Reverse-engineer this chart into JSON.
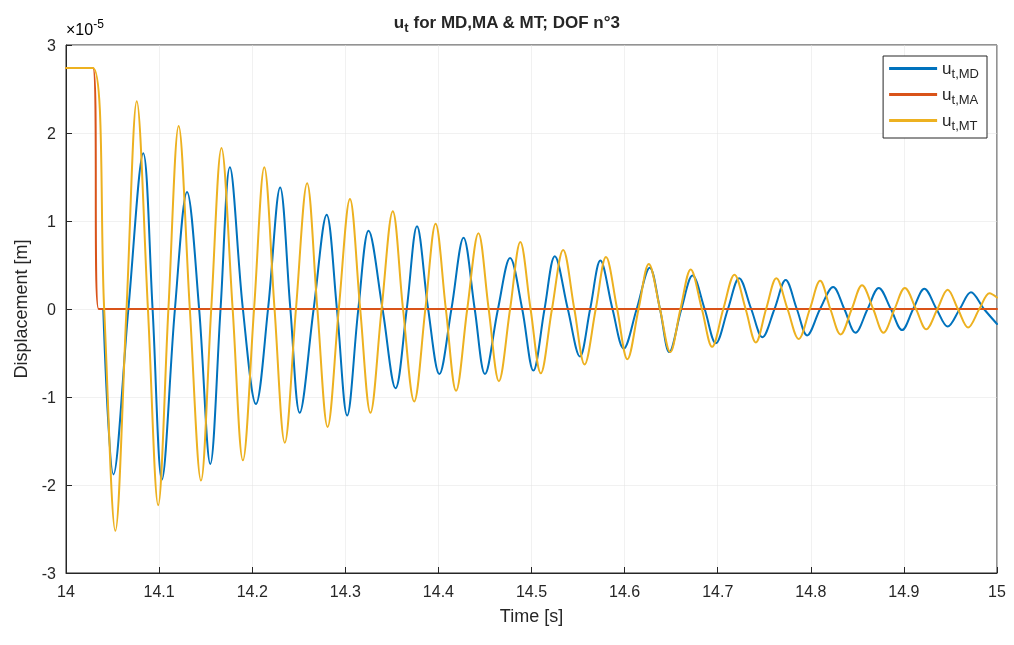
{
  "chart_data": {
    "type": "line",
    "title": "u$_{t}$ for MD,MA & MT; DOF n°3",
    "xlabel": "Time [s]",
    "ylabel": "Displacement [m]",
    "annotations": [
      "×10$^{-5}$"
    ],
    "xlim": [
      14,
      15
    ],
    "xticks": [
      14,
      14.1,
      14.2,
      14.3,
      14.4,
      14.5,
      14.6,
      14.7,
      14.8,
      14.9,
      15
    ],
    "ylim": [
      -3,
      3
    ],
    "yticks": [
      -3,
      -2,
      -1,
      0,
      1,
      2,
      3
    ],
    "grid": true,
    "legend": "top right",
    "marker": "none",
    "line_style": "solid",
    "series": [
      {
        "name": "u$_{t,MD}$",
        "color": "#0072bd",
        "x": [
          14.04,
          14.051,
          14.067,
          14.083,
          14.093,
          14.103,
          14.117,
          14.13,
          14.143,
          14.155,
          14.166,
          14.176,
          14.19,
          14.204,
          14.217,
          14.23,
          14.241,
          14.251,
          14.266,
          14.28,
          14.291,
          14.302,
          14.314,
          14.325,
          14.34,
          14.354,
          14.366,
          14.377,
          14.389,
          14.401,
          14.414,
          14.427,
          14.439,
          14.45,
          14.464,
          14.477,
          14.49,
          14.502,
          14.514,
          14.525,
          14.539,
          14.552,
          14.563,
          14.574,
          14.587,
          14.599,
          14.613,
          14.627,
          14.638,
          14.648,
          14.661,
          14.673,
          14.686,
          14.698,
          14.711,
          14.723,
          14.736,
          14.748,
          14.761,
          14.773,
          14.785,
          14.796,
          14.81,
          14.824,
          14.836,
          14.848,
          14.861,
          14.873,
          14.886,
          14.898,
          14.91,
          14.922,
          14.935,
          14.947,
          14.96,
          14.972,
          14.986,
          15.0
        ],
        "values": [
          0,
          -1.88,
          0,
          1.77,
          0,
          -1.94,
          0,
          1.33,
          0,
          -1.76,
          0,
          1.61,
          0,
          -1.08,
          0,
          1.38,
          0,
          -1.18,
          0,
          1.07,
          0,
          -1.21,
          0,
          0.89,
          0,
          -0.9,
          0,
          0.94,
          0,
          -0.74,
          0,
          0.81,
          0,
          -0.74,
          0,
          0.58,
          0,
          -0.7,
          0,
          0.6,
          0,
          -0.54,
          0,
          0.55,
          0,
          -0.45,
          0,
          0.47,
          0,
          -0.49,
          0,
          0.38,
          0,
          -0.39,
          0,
          0.35,
          0,
          -0.32,
          0,
          0.33,
          0,
          -0.3,
          0,
          0.25,
          0,
          -0.27,
          0,
          0.24,
          0,
          -0.24,
          0,
          0.23,
          0,
          -0.2,
          0,
          0.19,
          0,
          -0.17
        ]
      },
      {
        "name": "u$_{t,MA}$",
        "color": "#d95319",
        "x": [
          14,
          14.029,
          14.035,
          15
        ],
        "values": [
          2.74,
          2.74,
          0,
          0
        ]
      },
      {
        "name": "u$_{t,MT}$",
        "color": "#edb120",
        "x": [
          14,
          14.029,
          14.041,
          14.053,
          14.065,
          14.076,
          14.088,
          14.099,
          14.11,
          14.121,
          14.133,
          14.145,
          14.156,
          14.167,
          14.179,
          14.19,
          14.202,
          14.213,
          14.224,
          14.235,
          14.247,
          14.259,
          14.27,
          14.281,
          14.293,
          14.305,
          14.316,
          14.327,
          14.339,
          14.351,
          14.362,
          14.374,
          14.386,
          14.397,
          14.408,
          14.419,
          14.431,
          14.443,
          14.454,
          14.465,
          14.477,
          14.488,
          14.499,
          14.51,
          14.522,
          14.534,
          14.546,
          14.557,
          14.569,
          14.58,
          14.592,
          14.603,
          14.615,
          14.626,
          14.638,
          14.649,
          14.66,
          14.671,
          14.683,
          14.694,
          14.706,
          14.718,
          14.73,
          14.741,
          14.752,
          14.763,
          14.775,
          14.787,
          14.799,
          14.81,
          14.821,
          14.832,
          14.844,
          14.855,
          14.867,
          14.878,
          14.89,
          14.901,
          14.913,
          14.924,
          14.936,
          14.947,
          14.958,
          14.969,
          14.981,
          14.992,
          15.0
        ],
        "values": [
          2.74,
          2.74,
          0,
          -2.52,
          0,
          2.36,
          0,
          -2.23,
          0,
          2.08,
          0,
          -1.95,
          0,
          1.83,
          0,
          -1.72,
          0,
          1.61,
          0,
          -1.52,
          0,
          1.43,
          0,
          -1.34,
          0,
          1.25,
          0,
          -1.18,
          0,
          1.11,
          0,
          -1.05,
          0,
          0.97,
          0,
          -0.93,
          0,
          0.86,
          0,
          -0.82,
          0,
          0.76,
          0,
          -0.73,
          0,
          0.67,
          0,
          -0.63,
          0,
          0.59,
          0,
          -0.57,
          0,
          0.51,
          0,
          -0.49,
          0,
          0.45,
          0,
          -0.43,
          0,
          0.39,
          0,
          -0.38,
          0,
          0.35,
          0,
          -0.34,
          0,
          0.32,
          0,
          -0.29,
          0,
          0.27,
          0,
          -0.27,
          0,
          0.24,
          0,
          -0.23,
          0,
          0.22,
          0,
          -0.21,
          0,
          0.18,
          0.13
        ]
      }
    ]
  }
}
